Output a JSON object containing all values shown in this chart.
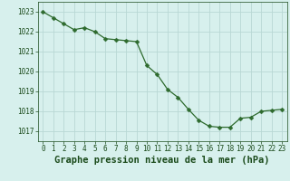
{
  "x": [
    0,
    1,
    2,
    3,
    4,
    5,
    6,
    7,
    8,
    9,
    10,
    11,
    12,
    13,
    14,
    15,
    16,
    17,
    18,
    19,
    20,
    21,
    22,
    23
  ],
  "y": [
    1023.0,
    1022.7,
    1022.4,
    1022.1,
    1022.2,
    1022.0,
    1021.65,
    1021.6,
    1021.55,
    1021.5,
    1020.3,
    1019.85,
    1019.1,
    1018.7,
    1018.1,
    1017.55,
    1017.25,
    1017.2,
    1017.2,
    1017.65,
    1017.7,
    1018.0,
    1018.05,
    1018.1
  ],
  "line_color": "#2d6a2d",
  "marker": "D",
  "marker_size": 2.5,
  "bg_color": "#d7f0ed",
  "grid_color": "#b8d8d4",
  "title": "Graphe pression niveau de la mer (hPa)",
  "ylim": [
    1016.5,
    1023.5
  ],
  "xlim": [
    -0.5,
    23.5
  ],
  "yticks": [
    1017,
    1018,
    1019,
    1020,
    1021,
    1022,
    1023
  ],
  "xticks": [
    0,
    1,
    2,
    3,
    4,
    5,
    6,
    7,
    8,
    9,
    10,
    11,
    12,
    13,
    14,
    15,
    16,
    17,
    18,
    19,
    20,
    21,
    22,
    23
  ],
  "tick_label_fontsize": 5.5,
  "title_fontsize": 7.5,
  "title_fontweight": "bold",
  "text_color": "#1a4a1a"
}
